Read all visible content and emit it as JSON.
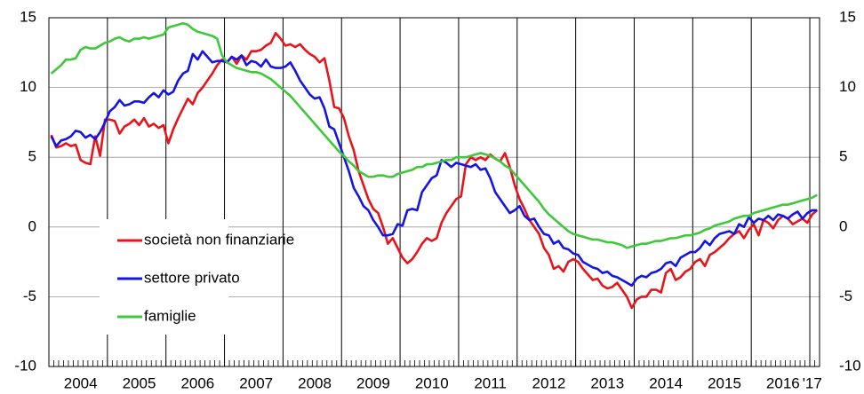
{
  "chart_data": {
    "type": "line",
    "categories": [
      null,
      null,
      null,
      null,
      null,
      null,
      "2004",
      null,
      null,
      null,
      null,
      null,
      null,
      null,
      null,
      null,
      null,
      null,
      "2005",
      null,
      null,
      null,
      null,
      null,
      null,
      null,
      null,
      null,
      null,
      null,
      "2006",
      null,
      null,
      null,
      null,
      null,
      null,
      null,
      null,
      null,
      null,
      null,
      "2007",
      null,
      null,
      null,
      null,
      null,
      null,
      null,
      null,
      null,
      null,
      null,
      "2008",
      null,
      null,
      null,
      null,
      null,
      null,
      null,
      null,
      null,
      null,
      null,
      "2009",
      null,
      null,
      null,
      null,
      null,
      null,
      null,
      null,
      null,
      null,
      null,
      "2010",
      null,
      null,
      null,
      null,
      null,
      null,
      null,
      null,
      null,
      null,
      null,
      "2011",
      null,
      null,
      null,
      null,
      null,
      null,
      null,
      null,
      null,
      null,
      null,
      "2012",
      null,
      null,
      null,
      null,
      null,
      null,
      null,
      null,
      null,
      null,
      null,
      "2013",
      null,
      null,
      null,
      null,
      null,
      null,
      null,
      null,
      null,
      null,
      null,
      "2014",
      null,
      null,
      null,
      null,
      null,
      null,
      null,
      null,
      null,
      null,
      null,
      "2015",
      null,
      null,
      null,
      null,
      null,
      null,
      null,
      null,
      null,
      null,
      null,
      "2016",
      null,
      null,
      null,
      null,
      null,
      "'17",
      null
    ],
    "series": [
      {
        "name": "società non finanziarie",
        "color": "#e8141b",
        "values": [
          6.6,
          5.7,
          5.8,
          6.0,
          5.8,
          5.9,
          4.8,
          4.6,
          4.5,
          6.5,
          5.1,
          7.7,
          7.7,
          7.6,
          6.7,
          7.2,
          7.4,
          7.7,
          7.3,
          7.8,
          7.2,
          7.4,
          7.1,
          7.3,
          6.0,
          7.0,
          7.8,
          8.5,
          9.2,
          8.8,
          9.6,
          10.0,
          10.5,
          11.0,
          11.6,
          12.0,
          11.8,
          12.2,
          11.7,
          12.3,
          12.0,
          12.6,
          12.6,
          12.7,
          13.0,
          13.2,
          13.9,
          13.5,
          13.0,
          13.1,
          12.9,
          13.1,
          12.7,
          12.4,
          12.2,
          11.8,
          12.1,
          10.5,
          8.6,
          8.5,
          7.8,
          6.5,
          5.5,
          4.0,
          3.0,
          2.0,
          1.3,
          1.0,
          0.0,
          -1.2,
          -0.8,
          -1.5,
          -2.2,
          -2.6,
          -2.3,
          -1.8,
          -1.2,
          -0.8,
          -1.0,
          -0.8,
          0.3,
          1.0,
          1.5,
          2.0,
          2.2,
          4.5,
          5.0,
          4.8,
          5.0,
          4.8,
          5.2,
          4.9,
          4.7,
          5.3,
          4.3,
          3.0,
          2.0,
          1.3,
          0.5,
          0.0,
          -0.5,
          -1.5,
          -2.0,
          -3.0,
          -2.8,
          -3.2,
          -2.5,
          -2.3,
          -2.5,
          -3.0,
          -3.4,
          -3.8,
          -3.7,
          -4.2,
          -4.4,
          -4.3,
          -4.0,
          -4.5,
          -5.0,
          -5.8,
          -5.2,
          -5.0,
          -5.0,
          -4.5,
          -4.5,
          -4.7,
          -3.3,
          -3.0,
          -3.8,
          -3.6,
          -3.2,
          -3.0,
          -2.5,
          -2.3,
          -2.8,
          -2.0,
          -1.8,
          -1.5,
          -1.2,
          -0.8,
          -0.5,
          -0.3,
          -0.8,
          -0.2,
          0.2,
          -0.6,
          0.5,
          0.3,
          -0.1,
          0.5,
          0.8,
          0.6,
          0.2,
          0.4,
          0.6,
          0.3,
          0.9,
          1.2
        ]
      },
      {
        "name": "settore privato",
        "color": "#1414e6",
        "values": [
          6.5,
          5.8,
          6.2,
          6.3,
          6.5,
          6.9,
          6.8,
          6.4,
          6.6,
          6.3,
          6.8,
          7.5,
          8.3,
          8.6,
          9.1,
          8.7,
          8.8,
          9.0,
          9.0,
          8.9,
          9.3,
          9.6,
          9.3,
          9.8,
          9.5,
          9.7,
          10.5,
          11.0,
          11.2,
          12.4,
          12.0,
          12.6,
          12.2,
          11.8,
          11.9,
          11.9,
          11.8,
          12.2,
          12.0,
          12.3,
          11.6,
          11.9,
          11.8,
          11.5,
          12.0,
          11.5,
          11.4,
          11.4,
          11.5,
          11.8,
          11.2,
          10.5,
          10.0,
          9.5,
          9.2,
          9.3,
          8.5,
          7.2,
          7.0,
          6.0,
          5.0,
          4.0,
          2.8,
          2.2,
          1.5,
          1.2,
          0.5,
          0.0,
          -0.6,
          -0.6,
          -0.5,
          0.2,
          0.1,
          1.2,
          1.3,
          1.2,
          2.5,
          3.0,
          3.5,
          3.7,
          4.8,
          4.6,
          4.3,
          4.6,
          4.5,
          4.4,
          4.3,
          4.5,
          4.1,
          4.2,
          3.5,
          2.5,
          2.0,
          1.5,
          1.0,
          1.2,
          1.5,
          0.8,
          0.5,
          0.6,
          0.0,
          -0.5,
          -0.6,
          -1.2,
          -1.0,
          -1.5,
          -1.6,
          -1.9,
          -2.0,
          -2.5,
          -2.7,
          -2.9,
          -3.0,
          -3.3,
          -3.2,
          -3.5,
          -3.6,
          -3.8,
          -4.0,
          -4.2,
          -3.7,
          -3.5,
          -3.6,
          -3.3,
          -3.2,
          -3.0,
          -2.6,
          -2.5,
          -2.8,
          -2.2,
          -2.0,
          -1.8,
          -1.8,
          -1.5,
          -1.0,
          -1.3,
          -0.8,
          -0.5,
          -0.4,
          -0.3,
          -0.5,
          0.2,
          0.0,
          0.7,
          0.3,
          0.6,
          0.5,
          0.8,
          0.5,
          0.9,
          0.8,
          0.6,
          0.9,
          1.1,
          0.6,
          1.0,
          1.2,
          1.2
        ]
      },
      {
        "name": "famiglie",
        "color": "#3ec83a",
        "values": [
          11.0,
          11.3,
          11.6,
          12.0,
          12.0,
          12.1,
          12.7,
          12.9,
          12.8,
          12.8,
          13.0,
          13.2,
          13.3,
          13.5,
          13.6,
          13.4,
          13.3,
          13.5,
          13.5,
          13.6,
          13.5,
          13.6,
          13.7,
          13.8,
          14.3,
          14.4,
          14.5,
          14.6,
          14.5,
          14.2,
          14.0,
          13.9,
          13.8,
          13.7,
          13.5,
          12.3,
          11.8,
          11.6,
          11.4,
          11.3,
          11.2,
          11.1,
          11.1,
          11.0,
          10.8,
          10.6,
          10.3,
          10.0,
          9.7,
          9.4,
          9.0,
          8.6,
          8.2,
          7.8,
          7.4,
          7.0,
          6.6,
          6.2,
          5.8,
          5.4,
          5.1,
          4.7,
          4.4,
          4.0,
          3.8,
          3.6,
          3.6,
          3.7,
          3.7,
          3.6,
          3.6,
          3.8,
          3.9,
          4.0,
          4.1,
          4.3,
          4.3,
          4.5,
          4.5,
          4.6,
          4.7,
          4.8,
          4.8,
          5.0,
          5.0,
          5.0,
          5.1,
          5.2,
          5.3,
          5.2,
          5.1,
          4.9,
          4.7,
          4.4,
          4.2,
          3.8,
          3.4,
          3.0,
          2.6,
          2.2,
          1.8,
          1.3,
          0.9,
          0.6,
          0.3,
          0.0,
          -0.3,
          -0.5,
          -0.6,
          -0.7,
          -0.8,
          -0.9,
          -0.9,
          -1.0,
          -1.1,
          -1.1,
          -1.2,
          -1.3,
          -1.5,
          -1.4,
          -1.3,
          -1.2,
          -1.2,
          -1.1,
          -1.0,
          -1.0,
          -0.9,
          -0.8,
          -0.8,
          -0.7,
          -0.6,
          -0.6,
          -0.5,
          -0.4,
          -0.2,
          -0.1,
          0.1,
          0.2,
          0.3,
          0.4,
          0.6,
          0.7,
          0.8,
          0.8,
          1.0,
          1.1,
          1.2,
          1.3,
          1.4,
          1.5,
          1.6,
          1.6,
          1.7,
          1.8,
          1.9,
          2.0,
          2.1,
          2.3
        ]
      }
    ],
    "ylim": [
      -10,
      15
    ],
    "yticks": [
      -10,
      -5,
      0,
      5,
      10,
      15
    ],
    "grid": true
  }
}
